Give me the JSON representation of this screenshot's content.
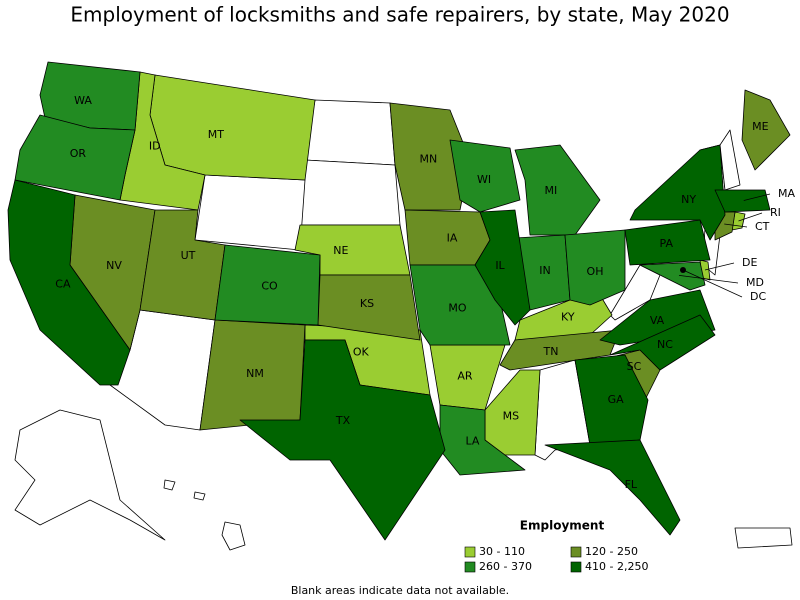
{
  "title": "Employment of locksmiths and safe repairers, by state, May 2020",
  "legend": {
    "title": "Employment",
    "items": [
      {
        "label": "30 - 110",
        "color": "#9acd32"
      },
      {
        "label": "120 - 250",
        "color": "#6b8e23"
      },
      {
        "label": "260 - 370",
        "color": "#228b22"
      },
      {
        "label": "410 - 2,250",
        "color": "#006400"
      }
    ]
  },
  "states": [
    {
      "abbr": "MT",
      "class": 0
    },
    {
      "abbr": "ID",
      "class": 0
    },
    {
      "abbr": "NE",
      "class": 0
    },
    {
      "abbr": "OK",
      "class": 0
    },
    {
      "abbr": "AR",
      "class": 0
    },
    {
      "abbr": "MS",
      "class": 0
    },
    {
      "abbr": "KY",
      "class": 0
    },
    {
      "abbr": "DE",
      "class": 0
    },
    {
      "abbr": "RI",
      "class": 0
    },
    {
      "abbr": "NV",
      "class": 1
    },
    {
      "abbr": "UT",
      "class": 1
    },
    {
      "abbr": "NM",
      "class": 1
    },
    {
      "abbr": "MN",
      "class": 1
    },
    {
      "abbr": "IA",
      "class": 1
    },
    {
      "abbr": "KS",
      "class": 1
    },
    {
      "abbr": "TN",
      "class": 1
    },
    {
      "abbr": "SC",
      "class": 1
    },
    {
      "abbr": "ME",
      "class": 1
    },
    {
      "abbr": "CT",
      "class": 1
    },
    {
      "abbr": "WA",
      "class": 2
    },
    {
      "abbr": "OR",
      "class": 2
    },
    {
      "abbr": "CO",
      "class": 2
    },
    {
      "abbr": "WI",
      "class": 2
    },
    {
      "abbr": "MI",
      "class": 2
    },
    {
      "abbr": "IN",
      "class": 2
    },
    {
      "abbr": "OH",
      "class": 2
    },
    {
      "abbr": "MO",
      "class": 2
    },
    {
      "abbr": "LA",
      "class": 2
    },
    {
      "abbr": "MD",
      "class": 2
    },
    {
      "abbr": "CA",
      "class": 3
    },
    {
      "abbr": "TX",
      "class": 3
    },
    {
      "abbr": "IL",
      "class": 3
    },
    {
      "abbr": "NY",
      "class": 3
    },
    {
      "abbr": "PA",
      "class": 3
    },
    {
      "abbr": "VA",
      "class": 3
    },
    {
      "abbr": "NC",
      "class": 3
    },
    {
      "abbr": "GA",
      "class": 3
    },
    {
      "abbr": "FL",
      "class": 3
    },
    {
      "abbr": "MA",
      "class": 3
    },
    {
      "abbr": "DC",
      "class": 3
    }
  ],
  "footnote": "Blank areas indicate data not available."
}
